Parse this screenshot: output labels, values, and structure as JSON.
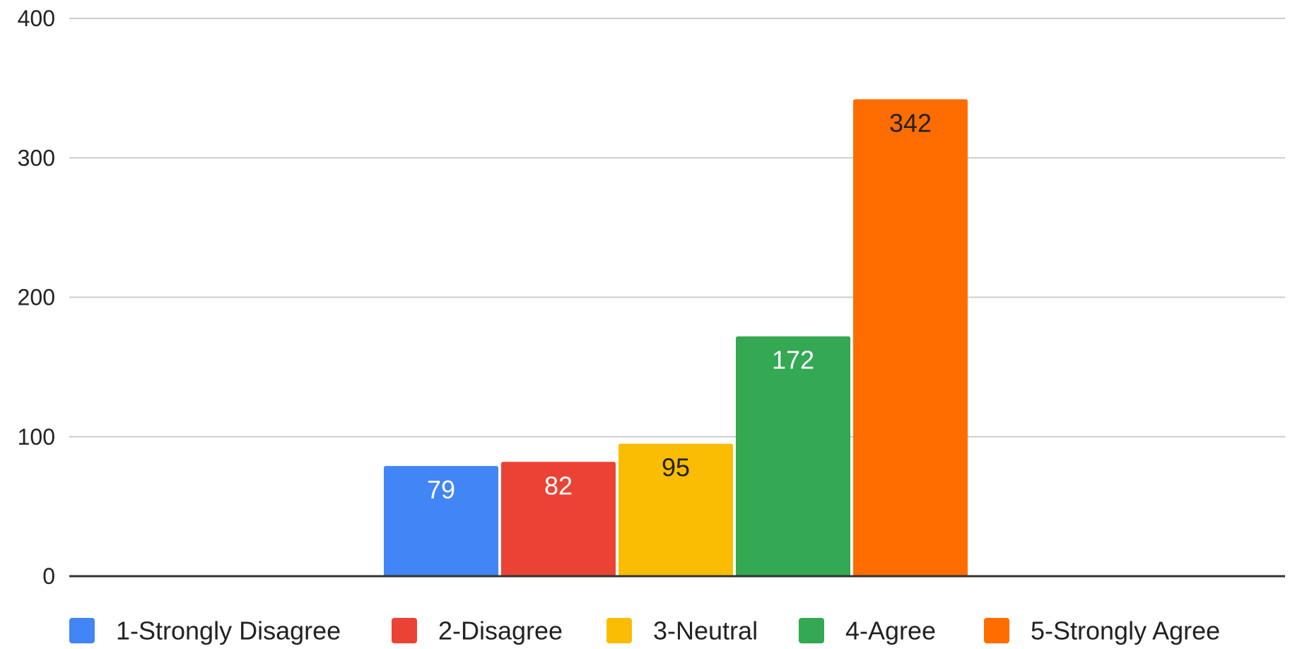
{
  "chart_data": {
    "type": "bar",
    "title": "",
    "xlabel": "",
    "ylabel": "",
    "ylim": [
      0,
      400
    ],
    "yticks": [
      0,
      100,
      200,
      300,
      400
    ],
    "grid": true,
    "legend_position": "bottom-left",
    "categories": [
      ""
    ],
    "series": [
      {
        "name": "1-Strongly Disagree",
        "values": [
          79
        ],
        "color": "#4285f4",
        "label_color": "#ffffff"
      },
      {
        "name": "2-Disagree",
        "values": [
          82
        ],
        "color": "#ea4335",
        "label_color": "#ffffff"
      },
      {
        "name": "3-Neutral",
        "values": [
          95
        ],
        "color": "#fbbc04",
        "label_color": "#222222"
      },
      {
        "name": "4-Agree",
        "values": [
          172
        ],
        "color": "#34a853",
        "label_color": "#ffffff"
      },
      {
        "name": "5-Strongly Agree",
        "values": [
          342
        ],
        "color": "#ff6d01",
        "label_color": "#222222"
      }
    ]
  }
}
